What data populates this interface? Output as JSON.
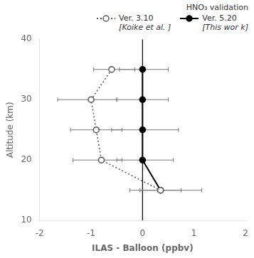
{
  "chart_data": {
    "type": "line",
    "xlabel": "ILAS - Balloon (ppbv)",
    "ylabel": "Altitude (km)",
    "xlim": [
      -2,
      2
    ],
    "ylim": [
      10,
      40
    ],
    "xticks": [
      -2,
      -1,
      0,
      1,
      2
    ],
    "yticks": [
      10,
      20,
      30,
      40
    ],
    "grid": false,
    "legend": "upper right",
    "legend_title": "HNO₃ validation",
    "vline_x": 0,
    "series": [
      {
        "name": "Ver. 3.10\n[Koike et al. ]",
        "color": "#555555",
        "marker": "circle_open",
        "line_style": "dotted",
        "x": [
          -0.6,
          -1.0,
          -0.9,
          -0.8,
          0.35
        ],
        "y": [
          35,
          30,
          25,
          20,
          15
        ],
        "xerr_neg": [
          0.35,
          0.65,
          0.5,
          0.55,
          0.4
        ],
        "xerr_pos": [
          0.45,
          0.5,
          0.5,
          0.4,
          0.4
        ]
      },
      {
        "name": "Ver. 5.20\n[This wor k]",
        "color": "#000000",
        "marker": "circle",
        "line_style": "solid",
        "x": [
          0.0,
          0.0,
          0.0,
          0.0,
          0.35
        ],
        "y": [
          35,
          30,
          25,
          20,
          15
        ],
        "xerr_neg": [
          0.45,
          0.5,
          0.6,
          0.5,
          0.6
        ],
        "xerr_pos": [
          0.5,
          0.5,
          0.7,
          0.6,
          0.8
        ]
      }
    ]
  }
}
